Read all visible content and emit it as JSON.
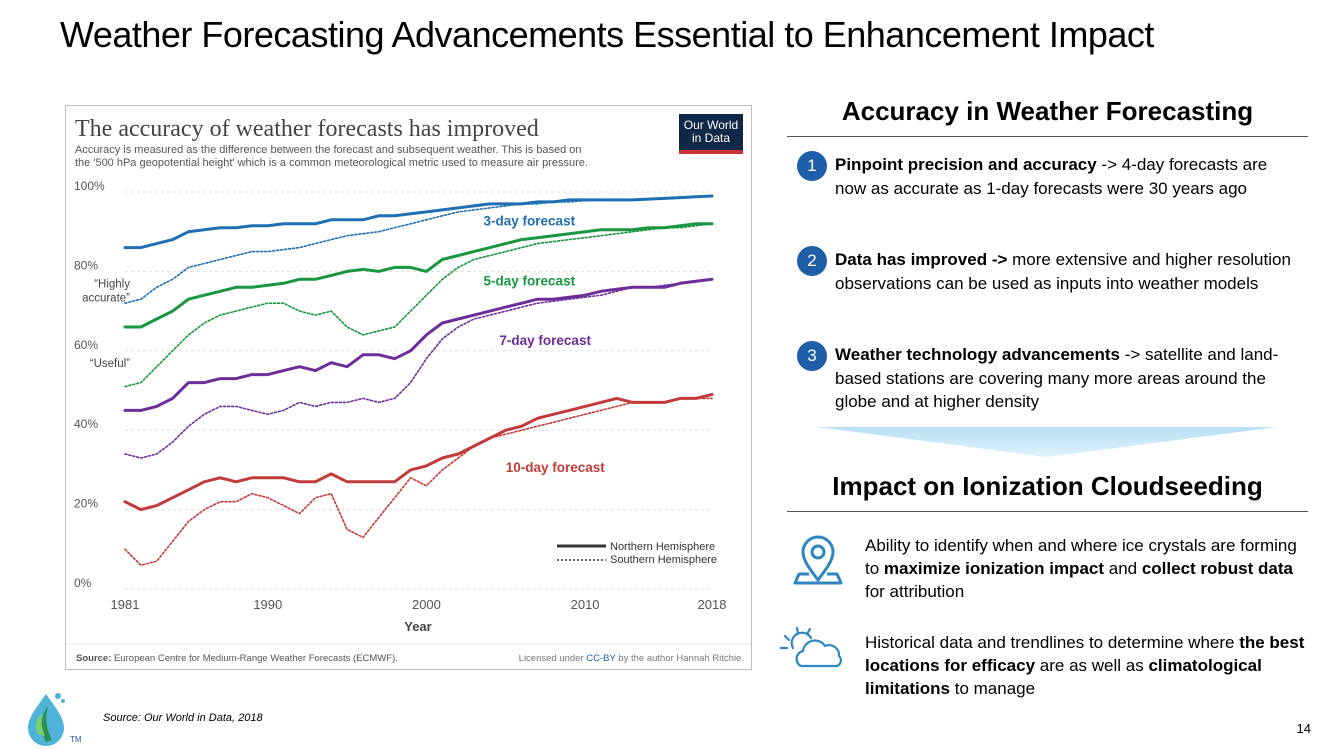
{
  "slide": {
    "title": "Weather Forecasting Advancements Essential to Enhancement Impact",
    "source_note": "Source: Our World in Data, 2018",
    "page_number": "14",
    "logo_tm": "TM"
  },
  "chart_data": {
    "type": "line",
    "title": "The accuracy of weather forecasts has improved",
    "subtitle_line1": "Accuracy is measured as the difference between the forecast and subsequent weather. This is based on",
    "subtitle_line2": "the '500 hPa geopotential height' which is a common meteorological metric used to measure air pressure.",
    "logo_line1": "Our World",
    "logo_line2": "in Data",
    "xlabel": "Year",
    "ylabel": "",
    "xlim": [
      1981,
      2018
    ],
    "ylim": [
      0,
      100
    ],
    "x_ticks": [
      1981,
      1990,
      2000,
      2010,
      2018
    ],
    "y_ticks": [
      {
        "value": 0,
        "label": "0%"
      },
      {
        "value": 20,
        "label": "20%"
      },
      {
        "value": 40,
        "label": "40%"
      },
      {
        "value": 60,
        "label": "60%"
      },
      {
        "value": 80,
        "label": "80%"
      },
      {
        "value": 100,
        "label": "100%"
      }
    ],
    "y_annotations": [
      {
        "value": 80,
        "lines": [
          "“Highly",
          "accurate”"
        ]
      },
      {
        "value": 60,
        "lines": [
          "“Useful”"
        ]
      }
    ],
    "legend": {
      "position": "bottom-right",
      "solid": "Northern Hemisphere",
      "dotted": "Southern Hemisphere"
    },
    "source_label": "Source:",
    "source_text": " European Centre for Medium-Range Weather Forecasts (ECMWF).",
    "license_pre": "Licensed under ",
    "license_link": "CC-BY",
    "license_post": " by the author Hannah Ritchie.",
    "x": [
      1981,
      1982,
      1983,
      1984,
      1985,
      1986,
      1987,
      1988,
      1989,
      1990,
      1991,
      1992,
      1993,
      1994,
      1995,
      1996,
      1997,
      1998,
      1999,
      2000,
      2001,
      2002,
      2003,
      2004,
      2005,
      2006,
      2007,
      2008,
      2009,
      2010,
      2011,
      2012,
      2013,
      2014,
      2015,
      2016,
      2017,
      2018
    ],
    "series": [
      {
        "name": "3-day forecast",
        "hemisphere": "Northern",
        "color": "#1f6fb2",
        "values": [
          86,
          86,
          87,
          88,
          90,
          90.5,
          91,
          91,
          91.5,
          91.5,
          92,
          92,
          92,
          93,
          93,
          93,
          94,
          94,
          94.5,
          95,
          95.5,
          96,
          96.5,
          97,
          97,
          97,
          97.5,
          97.5,
          98,
          98,
          98,
          98,
          98,
          98.2,
          98.4,
          98.6,
          98.8,
          99
        ]
      },
      {
        "name": "3-day forecast",
        "hemisphere": "Southern",
        "color": "#1f6fb2",
        "values": [
          72,
          73,
          76,
          78,
          81,
          82,
          83,
          84,
          85,
          85,
          85.5,
          86,
          87,
          88,
          89,
          89.5,
          90,
          91,
          92,
          93,
          94,
          95,
          95.5,
          96,
          96.5,
          97,
          97,
          97.5,
          97.5,
          97.8,
          98,
          98,
          98,
          98.2,
          98.4,
          98.6,
          98.8,
          99
        ]
      },
      {
        "name": "5-day forecast",
        "hemisphere": "Northern",
        "color": "#1a9641",
        "values": [
          66,
          66,
          68,
          70,
          73,
          74,
          75,
          76,
          76,
          76.5,
          77,
          78,
          78,
          79,
          80,
          80.5,
          80,
          81,
          81,
          80,
          83,
          84,
          85,
          86,
          87,
          88,
          88.5,
          89,
          89.5,
          90,
          90.5,
          90.5,
          90.5,
          91,
          91,
          91.5,
          92,
          92
        ]
      },
      {
        "name": "5-day forecast",
        "hemisphere": "Southern",
        "color": "#1a9641",
        "values": [
          51,
          52,
          56,
          60,
          64,
          67,
          69,
          70,
          71,
          72,
          72,
          70,
          69,
          70,
          66,
          64,
          65,
          66,
          70,
          74,
          78,
          81,
          83,
          84,
          85,
          86,
          87,
          87.5,
          88,
          88.5,
          89,
          89.5,
          90,
          90.5,
          91,
          91,
          91.5,
          92
        ]
      },
      {
        "name": "7-day forecast",
        "hemisphere": "Northern",
        "color": "#6d2e9a",
        "values": [
          45,
          45,
          46,
          48,
          52,
          52,
          53,
          53,
          54,
          54,
          55,
          56,
          55,
          57,
          56,
          59,
          59,
          58,
          60,
          64,
          67,
          68,
          69,
          70,
          71,
          72,
          73,
          73,
          73.5,
          74,
          75,
          75.5,
          76,
          76,
          76,
          77,
          77.5,
          78
        ]
      },
      {
        "name": "7-day forecast",
        "hemisphere": "Southern",
        "color": "#6d2e9a",
        "values": [
          34,
          33,
          34,
          37,
          41,
          44,
          46,
          46,
          45,
          44,
          45,
          47,
          46,
          47,
          47,
          48,
          47,
          48,
          52,
          58,
          63,
          66,
          68,
          69,
          70,
          71,
          72,
          72.5,
          73,
          73.5,
          74,
          75,
          76,
          76,
          76.5,
          77,
          77.5,
          78
        ]
      },
      {
        "name": "10-day forecast",
        "hemisphere": "Northern",
        "color": "#c23b3b",
        "values": [
          22,
          20,
          21,
          23,
          25,
          27,
          28,
          27,
          28,
          28,
          28,
          27,
          27,
          29,
          27,
          27,
          27,
          27,
          30,
          31,
          33,
          34,
          36,
          38,
          40,
          41,
          43,
          44,
          45,
          46,
          47,
          48,
          47,
          47,
          47,
          48,
          48,
          49
        ]
      },
      {
        "name": "10-day forecast",
        "hemisphere": "Southern",
        "color": "#c23b3b",
        "values": [
          10,
          6,
          7,
          12,
          17,
          20,
          22,
          22,
          24,
          23,
          21,
          19,
          23,
          24,
          15,
          13,
          18,
          23,
          28,
          26,
          30,
          33,
          36,
          38,
          39,
          40,
          41,
          42,
          43,
          44,
          45,
          46,
          47,
          47,
          47,
          48,
          48,
          48
        ]
      }
    ],
    "series_labels": [
      {
        "text": "3-day forecast",
        "x": 2003.6,
        "y": 91.5,
        "color": "#1f6fb2"
      },
      {
        "text": "5-day forecast",
        "x": 2003.6,
        "y": 76.5,
        "color": "#1a9641"
      },
      {
        "text": "7-day forecast",
        "x": 2004.6,
        "y": 61.5,
        "color": "#6d2e9a"
      },
      {
        "text": "10-day forecast",
        "x": 2005,
        "y": 29.5,
        "color": "#c23b3b"
      }
    ]
  },
  "accuracy": {
    "heading": "Accuracy in Weather Forecasting",
    "items": [
      {
        "num": "1",
        "bold": "Pinpoint precision and accuracy",
        "rest": " -> 4-day forecasts are now as accurate as 1-day forecasts were 30 years ago"
      },
      {
        "num": "2",
        "bold": "Data has improved ->",
        "rest": " more extensive and higher resolution observations can be used as inputs into weather models"
      },
      {
        "num": "3",
        "bold": "Weather technology advancements",
        "rest": " -> satellite and land-based stations are covering many more areas around the globe and at higher density"
      }
    ]
  },
  "impact": {
    "heading": "Impact on Ionization Cloudseeding",
    "items": [
      {
        "icon": "location-pin-icon",
        "t1": "Ability to identify when and where ice crystals are forming to ",
        "b1": "maximize ionization impact",
        "t2": " and ",
        "b2": "collect robust data",
        "t3": " for attribution"
      },
      {
        "icon": "sun-cloud-icon",
        "t1": "Historical data and trendlines to determine where ",
        "b1": "the best locations for efficacy",
        "t2": " are as well as ",
        "b2": "climatological limitations",
        "t3": " to manage"
      }
    ]
  },
  "colors": {
    "accent": "#1f5ea8",
    "icon": "#2e86c1"
  }
}
